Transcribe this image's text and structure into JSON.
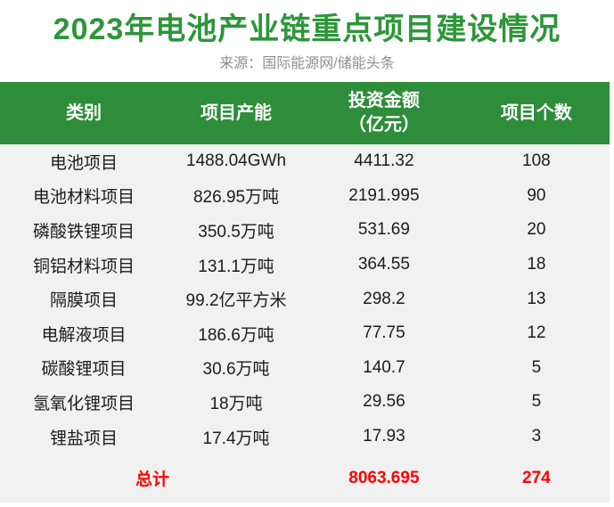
{
  "page": {
    "title": "2023年电池产业链重点项目建设情况",
    "source_label": "来源：",
    "source_value": "国际能源网/储能头条"
  },
  "colors": {
    "title_green": "#2c9639",
    "header_green": "#2e8d3a",
    "body_background": "#f1f1f1",
    "body_text": "#1c1c1c",
    "source_gray": "#8e8e8e",
    "total_red": "#ff0000",
    "header_text": "#ffffff"
  },
  "chart_data": {
    "type": "table",
    "title": "2023年电池产业链重点项目建设情况",
    "source": "来源：国际能源网/储能头条",
    "columns": [
      "类别",
      "项目产能",
      "投资金额（亿元）",
      "项目个数"
    ],
    "columns_display": [
      "类别",
      "项目产能",
      "投资金额\n（亿元）",
      "项目个数"
    ],
    "rows": [
      [
        "电池项目",
        "1488.04GWh",
        "4411.32",
        "108"
      ],
      [
        "电池材料项目",
        "826.95万吨",
        "2191.995",
        "90"
      ],
      [
        "磷酸铁锂项目",
        "350.5万吨",
        "531.69",
        "20"
      ],
      [
        "铜铝材料项目",
        "131.1万吨",
        "364.55",
        "18"
      ],
      [
        "隔膜项目",
        "99.2亿平方米",
        "298.2",
        "13"
      ],
      [
        "电解液项目",
        "186.6万吨",
        "77.75",
        "12"
      ],
      [
        "碳酸锂项目",
        "30.6万吨",
        "140.7",
        "5"
      ],
      [
        "氢氧化锂项目",
        "18万吨",
        "29.56",
        "5"
      ],
      [
        "锂盐项目",
        "17.4万吨",
        "17.93",
        "3"
      ]
    ],
    "total": {
      "label": "总计",
      "investment": "8063.695",
      "count": "274"
    }
  }
}
